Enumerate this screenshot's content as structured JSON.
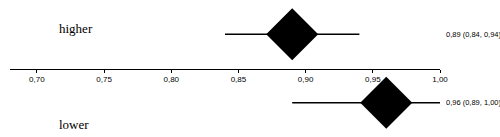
{
  "chart_data": {
    "type": "forest",
    "categories": [
      "higher",
      "lower"
    ],
    "values": [
      0.89,
      0.96
    ],
    "ci_low": [
      0.84,
      0.89
    ],
    "ci_high": [
      0.94,
      1.0
    ],
    "value_labels": [
      "0,89 (0,84, 0,94)",
      "0,96 (0,89, 1,00)"
    ],
    "xlim": [
      0.68,
      1.0
    ],
    "xticks": [
      {
        "value": 0.7,
        "label": "0,70"
      },
      {
        "value": 0.75,
        "label": "0,75"
      },
      {
        "value": 0.8,
        "label": "0,80"
      },
      {
        "value": 0.85,
        "label": "0,85"
      },
      {
        "value": 0.9,
        "label": "0,90"
      },
      {
        "value": 0.95,
        "label": "0,95"
      },
      {
        "value": 1.0,
        "label": "1,00"
      }
    ],
    "color": "#000000",
    "marker": "diamond",
    "grid": false
  }
}
